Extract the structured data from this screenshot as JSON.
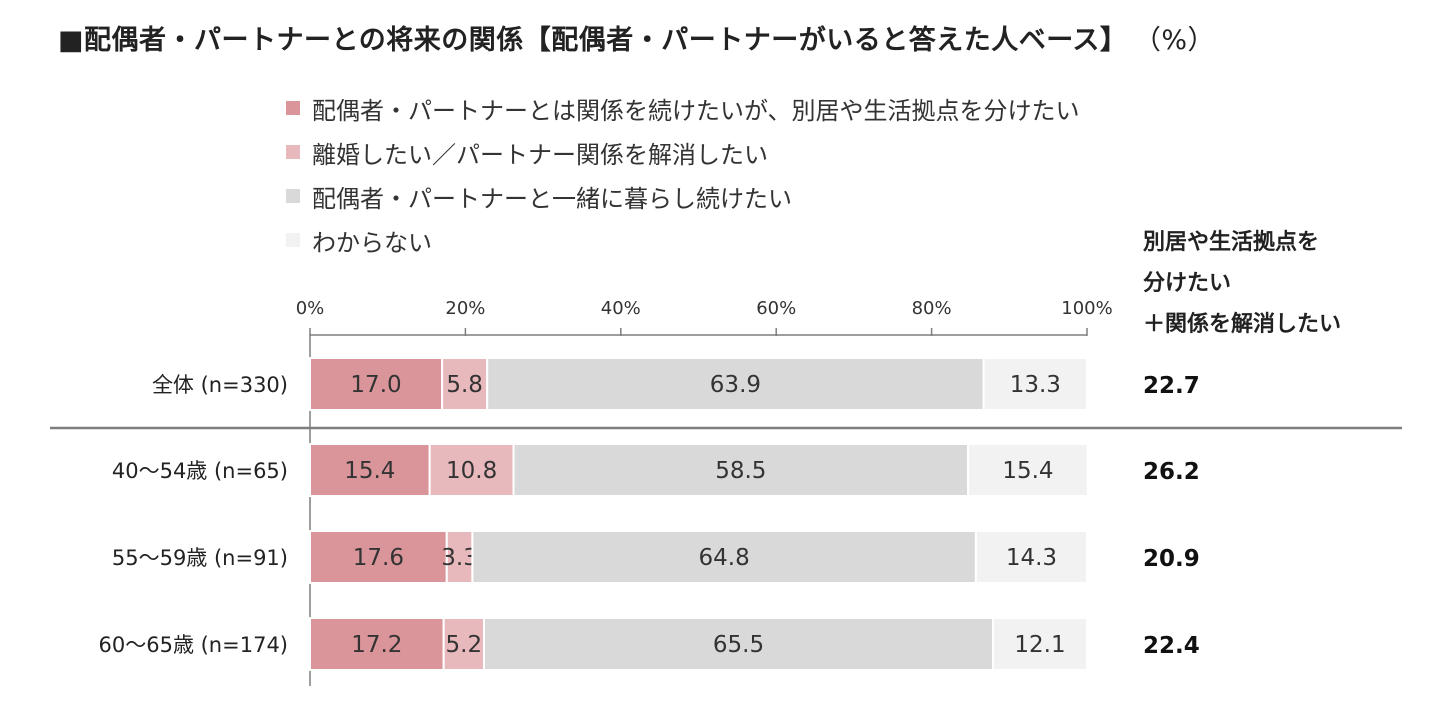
{
  "title": "■配偶者・パートナーとの将来の関係【配偶者・パートナーがいると答えた人ベース】",
  "unit": "（%）",
  "legend": [
    {
      "label": "配偶者・パートナーとは関係を続けたいが、別居や生活拠点を分けたい",
      "color": "#d9959a"
    },
    {
      "label": "離婚したい／パートナー関係を解消したい",
      "color": "#e8b9bc"
    },
    {
      "label": "配偶者・パートナーと一緒に暮らし続けたい",
      "color": "#d9d9d9"
    },
    {
      "label": "わからない",
      "color": "#f2f2f2"
    }
  ],
  "side_header": [
    "別居や生活拠点を",
    "分けたい",
    "＋関係を解消したい"
  ],
  "chart_data": {
    "type": "bar",
    "orientation": "horizontal",
    "stacked": true,
    "xlim": [
      0,
      100
    ],
    "ticks": [
      "0%",
      "20%",
      "40%",
      "60%",
      "80%",
      "100%"
    ],
    "categories": [
      "全体 (n=330)",
      "40～54歳 (n=65)",
      "55～59歳 (n=91)",
      "60～65歳 (n=174)"
    ],
    "series": [
      {
        "name": "配偶者・パートナーとは関係を続けたいが、別居や生活拠点を分けたい",
        "values": [
          17.0,
          15.4,
          17.6,
          17.2
        ]
      },
      {
        "name": "離婚したい／パートナー関係を解消したい",
        "values": [
          5.8,
          10.8,
          3.3,
          5.2
        ]
      },
      {
        "name": "配偶者・パートナーと一緒に暮らし続けたい",
        "values": [
          63.9,
          58.5,
          64.8,
          65.5
        ]
      },
      {
        "name": "わからない",
        "values": [
          13.3,
          15.4,
          14.3,
          12.1
        ]
      }
    ],
    "value_labels": [
      [
        "17.0",
        "5.8",
        "63.9",
        "13.3"
      ],
      [
        "15.4",
        "10.8",
        "58.5",
        "15.4"
      ],
      [
        "17.6",
        "3.3",
        "64.8",
        "14.3"
      ],
      [
        "17.2",
        "5.2",
        "65.5",
        "12.1"
      ]
    ],
    "combined_labels": [
      "22.7",
      "26.2",
      "20.9",
      "22.4"
    ]
  }
}
